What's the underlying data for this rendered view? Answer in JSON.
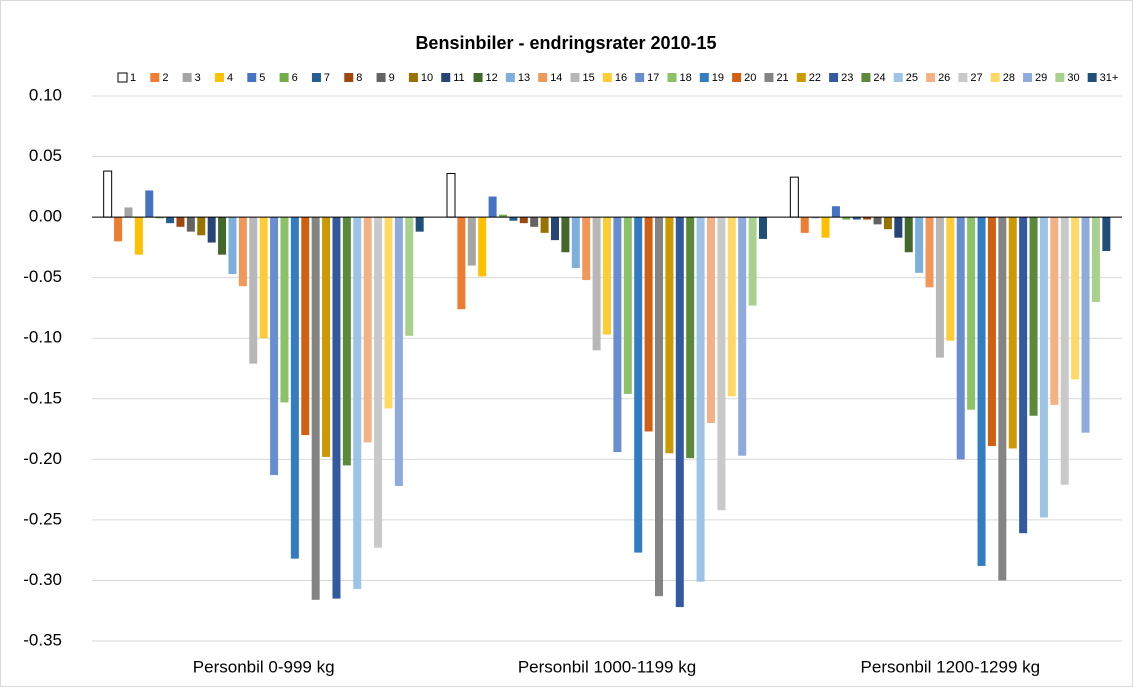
{
  "chart_data": {
    "type": "bar",
    "title": "Bensinbiler - endringsrater 2010-15",
    "categories": [
      "Personbil 0-999 kg",
      "Personbil 1000-1199 kg",
      "Personbil 1200-1299 kg"
    ],
    "ylim": [
      -0.35,
      0.1
    ],
    "yticks": [
      {
        "value": 0.1,
        "label": "0.10"
      },
      {
        "value": 0.05,
        "label": "0.05"
      },
      {
        "value": 0,
        "label": "0.00"
      },
      {
        "value": -0.05,
        "label": "-0.05"
      },
      {
        "value": -0.1,
        "label": "-0.10"
      },
      {
        "value": -0.15,
        "label": "-0.15"
      },
      {
        "value": -0.2,
        "label": "-0.20"
      },
      {
        "value": -0.25,
        "label": "-0.25"
      },
      {
        "value": -0.3,
        "label": "-0.30"
      },
      {
        "value": -0.35,
        "label": "-0.35"
      }
    ],
    "grid": true,
    "legend": "top",
    "series": [
      {
        "name": "1",
        "color": "#FFFFFF",
        "edgecolor": "#000000",
        "values": [
          0.038,
          0.036,
          0.033
        ]
      },
      {
        "name": "2",
        "color": "#ED7D31",
        "values": [
          -0.02,
          -0.076,
          -0.013
        ]
      },
      {
        "name": "3",
        "color": "#A5A5A5",
        "values": [
          0.008,
          -0.04,
          -0.001
        ]
      },
      {
        "name": "4",
        "color": "#FFC000",
        "values": [
          -0.031,
          -0.049,
          -0.017
        ]
      },
      {
        "name": "5",
        "color": "#4472C4",
        "values": [
          0.022,
          0.017,
          0.009
        ]
      },
      {
        "name": "6",
        "color": "#70AD47",
        "values": [
          -0.001,
          0.002,
          -0.002
        ]
      },
      {
        "name": "7",
        "color": "#255E91",
        "values": [
          -0.005,
          -0.003,
          -0.002
        ]
      },
      {
        "name": "8",
        "color": "#9E480E",
        "values": [
          -0.008,
          -0.005,
          -0.002
        ]
      },
      {
        "name": "9",
        "color": "#636363",
        "values": [
          -0.012,
          -0.008,
          -0.006
        ]
      },
      {
        "name": "10",
        "color": "#997300",
        "values": [
          -0.015,
          -0.013,
          -0.01
        ]
      },
      {
        "name": "11",
        "color": "#264478",
        "values": [
          -0.021,
          -0.019,
          -0.017
        ]
      },
      {
        "name": "12",
        "color": "#43682B",
        "values": [
          -0.031,
          -0.029,
          -0.029
        ]
      },
      {
        "name": "13",
        "color": "#7CAFDD",
        "values": [
          -0.047,
          -0.042,
          -0.046
        ]
      },
      {
        "name": "14",
        "color": "#F1975A",
        "values": [
          -0.057,
          -0.052,
          -0.058
        ]
      },
      {
        "name": "15",
        "color": "#B7B7B7",
        "values": [
          -0.121,
          -0.11,
          -0.116
        ]
      },
      {
        "name": "16",
        "color": "#FFCD33",
        "values": [
          -0.1,
          -0.097,
          -0.102
        ]
      },
      {
        "name": "17",
        "color": "#698ED0",
        "values": [
          -0.213,
          -0.194,
          -0.2
        ]
      },
      {
        "name": "18",
        "color": "#8CC168",
        "values": [
          -0.153,
          -0.146,
          -0.159
        ]
      },
      {
        "name": "19",
        "color": "#327DC2",
        "values": [
          -0.282,
          -0.277,
          -0.288
        ]
      },
      {
        "name": "20",
        "color": "#D26012",
        "values": [
          -0.18,
          -0.177,
          -0.189
        ]
      },
      {
        "name": "21",
        "color": "#848484",
        "values": [
          -0.316,
          -0.313,
          -0.3
        ]
      },
      {
        "name": "22",
        "color": "#CC9A00",
        "values": [
          -0.198,
          -0.195,
          -0.191
        ]
      },
      {
        "name": "23",
        "color": "#335AA1",
        "values": [
          -0.315,
          -0.322,
          -0.261
        ]
      },
      {
        "name": "24",
        "color": "#5A8A39",
        "values": [
          -0.205,
          -0.199,
          -0.164
        ]
      },
      {
        "name": "25",
        "color": "#9DC3E6",
        "values": [
          -0.307,
          -0.301,
          -0.248
        ]
      },
      {
        "name": "26",
        "color": "#F4B183",
        "values": [
          -0.186,
          -0.17,
          -0.155
        ]
      },
      {
        "name": "27",
        "color": "#C9C9C9",
        "values": [
          -0.273,
          -0.242,
          -0.221
        ]
      },
      {
        "name": "28",
        "color": "#FFD966",
        "values": [
          -0.158,
          -0.148,
          -0.134
        ]
      },
      {
        "name": "29",
        "color": "#8FAADC",
        "values": [
          -0.222,
          -0.197,
          -0.178
        ]
      },
      {
        "name": "30",
        "color": "#A9D18E",
        "values": [
          -0.098,
          -0.073,
          -0.07
        ]
      },
      {
        "name": "31+",
        "color": "#1F4E79",
        "values": [
          -0.012,
          -0.018,
          -0.028
        ]
      }
    ]
  }
}
